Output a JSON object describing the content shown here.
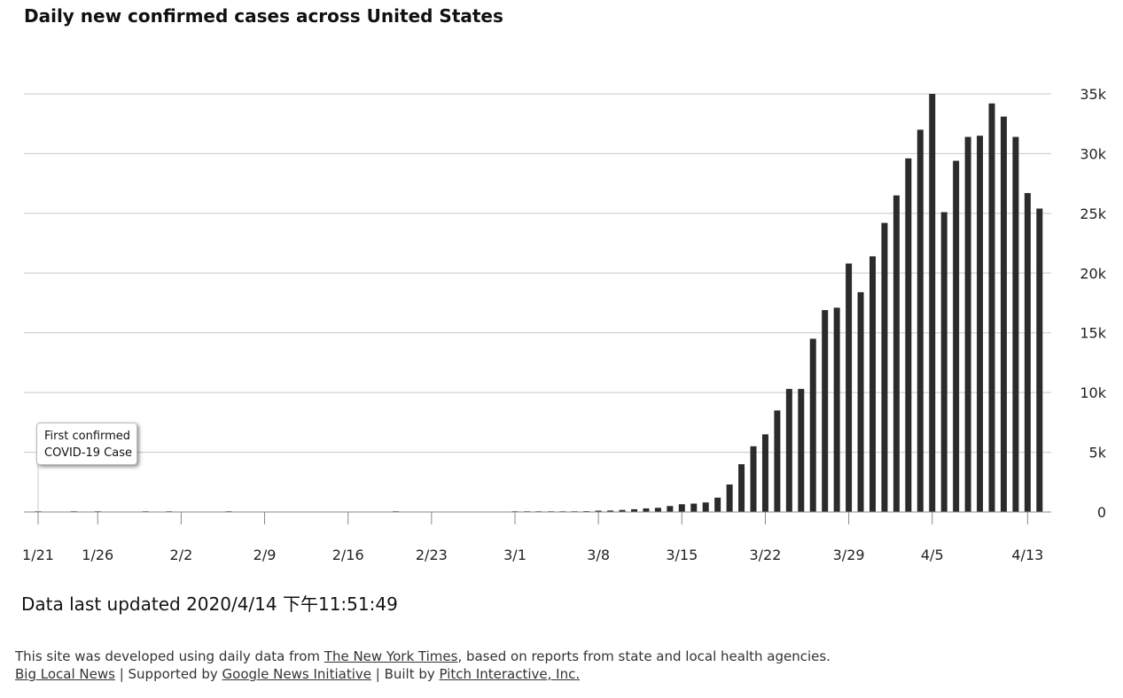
{
  "title": "Daily new confirmed cases across United States",
  "annotation": {
    "line1": "First confirmed",
    "line2": "COVID-19 Case"
  },
  "updated": "Data last updated 2020/4/14 下午11:51:49",
  "footer": {
    "line1_pre": "This site was developed using daily data from ",
    "nyt_link": "The New York Times",
    "line1_post": ", based on reports from state and local health agencies.",
    "big_local_link": "Big Local News",
    "sep1": " | Supported by ",
    "google_link": "Google News Initiative",
    "sep2": " | Built by ",
    "pitch_link": "Pitch Interactive, Inc."
  },
  "colors": {
    "bar": "#2b2b2b",
    "grid": "#c8c8c8",
    "axis": "#888888"
  },
  "chart_data": {
    "type": "bar",
    "title": "Daily new confirmed cases across United States",
    "xlabel": "",
    "ylabel": "",
    "ylim": [
      0,
      35000
    ],
    "y_ticks": [
      {
        "value": 0,
        "label": "0"
      },
      {
        "value": 5000,
        "label": "5k"
      },
      {
        "value": 10000,
        "label": "10k"
      },
      {
        "value": 15000,
        "label": "15k"
      },
      {
        "value": 20000,
        "label": "20k"
      },
      {
        "value": 25000,
        "label": "25k"
      },
      {
        "value": 30000,
        "label": "30k"
      },
      {
        "value": 35000,
        "label": "35k"
      }
    ],
    "x_ticks": [
      {
        "day": 0,
        "label": "1/21"
      },
      {
        "day": 5,
        "label": "1/26"
      },
      {
        "day": 12,
        "label": "2/2"
      },
      {
        "day": 19,
        "label": "2/9"
      },
      {
        "day": 26,
        "label": "2/16"
      },
      {
        "day": 33,
        "label": "2/23"
      },
      {
        "day": 40,
        "label": "3/1"
      },
      {
        "day": 47,
        "label": "3/8"
      },
      {
        "day": 54,
        "label": "3/15"
      },
      {
        "day": 61,
        "label": "3/22"
      },
      {
        "day": 68,
        "label": "3/29"
      },
      {
        "day": 75,
        "label": "4/5"
      },
      {
        "day": 83,
        "label": "4/13"
      }
    ],
    "grid": true,
    "y_axis_side": "right",
    "start_date": "1/21",
    "values": [
      1,
      0,
      0,
      1,
      0,
      2,
      0,
      0,
      0,
      1,
      0,
      1,
      0,
      0,
      0,
      0,
      1,
      0,
      0,
      0,
      0,
      0,
      0,
      0,
      0,
      0,
      0,
      0,
      0,
      0,
      1,
      0,
      0,
      0,
      0,
      0,
      0,
      0,
      0,
      0,
      3,
      8,
      20,
      30,
      40,
      60,
      70,
      110,
      120,
      170,
      230,
      300,
      350,
      500,
      650,
      700,
      800,
      1200,
      2300,
      4000,
      5500,
      6500,
      8500,
      10300,
      10300,
      14500,
      16900,
      17100,
      20800,
      18400,
      21400,
      24200,
      26500,
      29600,
      32000,
      35000,
      25100,
      29400,
      31400,
      31500,
      34200,
      33100,
      31400,
      26700,
      25400
    ]
  }
}
